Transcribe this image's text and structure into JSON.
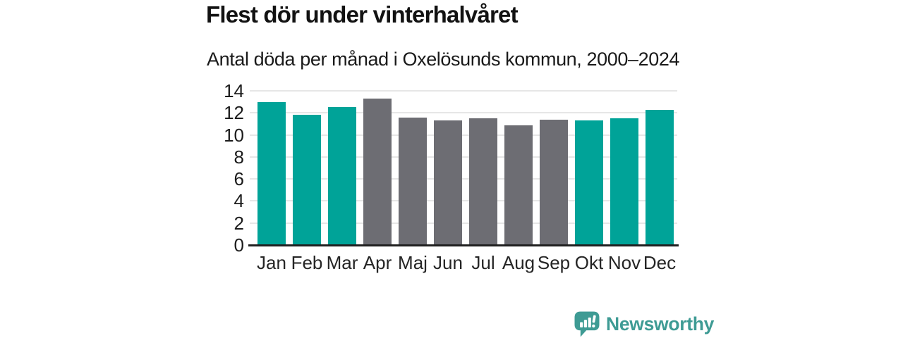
{
  "title": "Flest dör under vinterhalvåret",
  "subtitle": "Antal döda per månad i Oxelösunds kommun, 2000–2024",
  "branding": {
    "logo_text": "Newsworthy",
    "logo_icon": "bar-chart-speech-bubble",
    "logo_color": "#3e9b94"
  },
  "colors": {
    "highlight_bar": "#00a398",
    "muted_bar": "#6d6d73",
    "gridline": "#e6e6e6",
    "axis_line": "#202020",
    "text": "#1a1a1a",
    "background": "#ffffff"
  },
  "chart_data": {
    "type": "bar",
    "title": "Flest dör under vinterhalvåret",
    "subtitle": "Antal döda per månad i Oxelösunds kommun, 2000–2024",
    "categories": [
      "Jan",
      "Feb",
      "Mar",
      "Apr",
      "Maj",
      "Jun",
      "Jul",
      "Aug",
      "Sep",
      "Okt",
      "Nov",
      "Dec"
    ],
    "values": [
      13.0,
      11.8,
      12.5,
      13.3,
      11.6,
      11.3,
      11.5,
      10.9,
      11.4,
      11.3,
      11.5,
      12.3
    ],
    "bar_colors": [
      "#00a398",
      "#00a398",
      "#00a398",
      "#6d6d73",
      "#6d6d73",
      "#6d6d73",
      "#6d6d73",
      "#6d6d73",
      "#6d6d73",
      "#00a398",
      "#00a398",
      "#00a398"
    ],
    "highlighted_months": [
      "Jan",
      "Feb",
      "Mar",
      "Okt",
      "Nov",
      "Dec"
    ],
    "xlabel": "",
    "ylabel": "",
    "ylim": [
      0,
      14
    ],
    "yticks": [
      0,
      2,
      4,
      6,
      8,
      10,
      12,
      14
    ],
    "grid": true,
    "legend_position": "none"
  }
}
